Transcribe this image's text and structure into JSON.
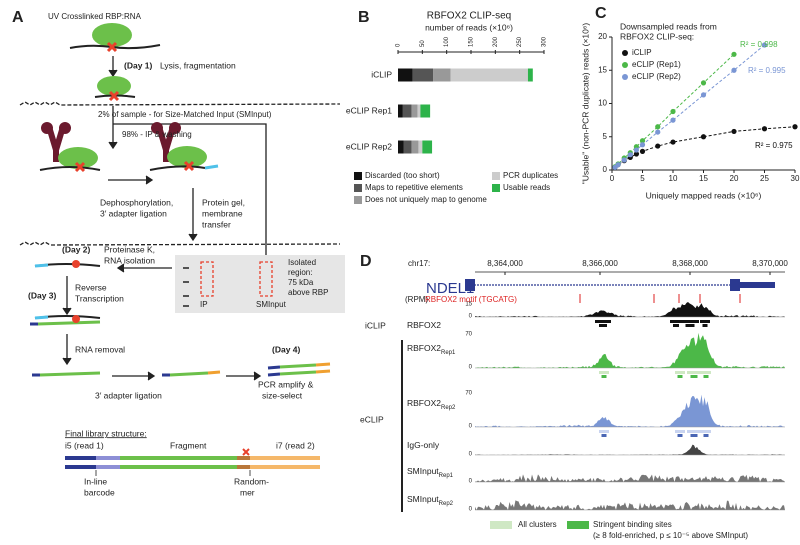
{
  "panel_a": {
    "label": "A",
    "top": "UV Crosslinked RBP:RNA",
    "day1": "(Day 1)",
    "day1_step": "Lysis, fragmentation",
    "split": "2% of sample - for Size-Matched Input (SMInput)",
    "ip": "98% - IP & washing",
    "dephos": [
      "Dephosphorylation,",
      "3′ adapter ligation"
    ],
    "gel": [
      "Protein gel,",
      "membrane",
      "transfer"
    ],
    "day2": "(Day 2)",
    "day2_step": [
      "Proteinase K,",
      "RNA isolation"
    ],
    "isolated": [
      "Isolated",
      "region:",
      "75 kDa",
      "above RBP"
    ],
    "gel_lanes": [
      "IP",
      "SMInput"
    ],
    "day3": "(Day 3)",
    "day3_step": [
      "Reverse",
      "Transcription"
    ],
    "removal": "RNA removal",
    "ligation": "3′ adapter ligation",
    "day4": "(Day 4)",
    "day4_step": [
      "PCR amplify &",
      "size-select"
    ],
    "library_title": "Final library structure:",
    "library_parts": [
      "i5 (read 1)",
      "Fragment",
      "i7 (read 2)"
    ],
    "inline": [
      "In-line",
      "barcode"
    ],
    "randommer": [
      "Random-",
      "mer"
    ]
  },
  "chart_data": [
    {
      "type": "bar",
      "panel_label": "B",
      "title": "RBFOX2 CLIP-seq",
      "subtitle": "number of reads (×10⁶)",
      "orientation": "horizontal",
      "stacked": true,
      "categories": [
        "iCLIP",
        "eCLIP Rep1",
        "eCLIP Rep2"
      ],
      "series": [
        {
          "name": "Discarded (too short)",
          "color": "#111111",
          "values": [
            30,
            10,
            12
          ]
        },
        {
          "name": "Maps to repetitive elements",
          "color": "#555555",
          "values": [
            42,
            18,
            16
          ]
        },
        {
          "name": "Does not uniquely map to genome",
          "color": "#999999",
          "values": [
            36,
            12,
            14
          ]
        },
        {
          "name": "PCR duplicates",
          "color": "#cccccc",
          "values": [
            159,
            6,
            8
          ]
        },
        {
          "name": "Usable reads",
          "color": "#2db34a",
          "values": [
            10,
            20,
            20
          ]
        }
      ],
      "xlim": [
        0,
        300
      ],
      "xticks": [
        0,
        50,
        100,
        150,
        200,
        250,
        300
      ]
    },
    {
      "type": "scatter",
      "panel_label": "C",
      "legend_title": [
        "Downsampled reads from",
        "RBFOX2 CLIP-seq:"
      ],
      "x_label": "Uniquely mapped reads (×10⁶)",
      "y_label": "\"Usable\" (non-PCR duplicate) reads (×10⁶)",
      "series": [
        {
          "name": "iCLIP",
          "color": "#111111",
          "x": [
            0.5,
            1,
            2,
            3,
            4,
            5,
            7.5,
            10,
            15,
            20,
            25,
            30
          ],
          "values": [
            0.4,
            0.8,
            1.4,
            1.9,
            2.4,
            2.8,
            3.6,
            4.2,
            5.0,
            5.8,
            6.2,
            6.5
          ]
        },
        {
          "name": "eCLIP (Rep1)",
          "color": "#4cb848",
          "x": [
            0.5,
            1,
            2,
            3,
            4,
            5,
            7.5,
            10,
            15,
            20
          ],
          "values": [
            0.5,
            0.9,
            1.8,
            2.6,
            3.5,
            4.4,
            6.5,
            8.8,
            13.1,
            17.4
          ]
        },
        {
          "name": "eCLIP (Rep2)",
          "color": "#7a96d4",
          "x": [
            0.5,
            1,
            2,
            3,
            4,
            5,
            7.5,
            10,
            15,
            20,
            25
          ],
          "values": [
            0.4,
            0.8,
            1.5,
            2.3,
            3.0,
            3.8,
            5.7,
            7.5,
            11.3,
            15.0,
            18.8
          ]
        }
      ],
      "annotations": [
        {
          "text": "R² = 0.998",
          "color": "#4cb848"
        },
        {
          "text": "R² = 0.995",
          "color": "#7a96d4"
        },
        {
          "text": "R² = 0.975",
          "color": "#111111"
        }
      ],
      "xlim": [
        0,
        30
      ],
      "xticks": [
        0,
        5,
        10,
        15,
        20,
        25,
        30
      ],
      "ylim": [
        0,
        20
      ],
      "yticks": [
        0,
        5,
        10,
        15,
        20
      ]
    }
  ],
  "panel_d": {
    "label": "D",
    "chrom": "chr17:",
    "coords": [
      "8,364,000",
      "8,366,000",
      "8,368,000",
      "8,370,000"
    ],
    "gene": "NDEL1",
    "units": "(RPM)",
    "motif": "RBFOX2 motif (TGCATG)",
    "groups": [
      "iCLIP",
      "eCLIP"
    ],
    "tracks": [
      {
        "name": "RBFOX2",
        "max": 15,
        "min": 0
      },
      {
        "name": "RBFOX2",
        "sub": "Rep1",
        "max": 70,
        "min": 0
      },
      {
        "name": "RBFOX2",
        "sub": "Rep2",
        "max": 70,
        "min": 0
      },
      {
        "name": "IgG-only",
        "min": 0
      },
      {
        "name": "SMInput",
        "sub": "Rep1",
        "min": 0
      },
      {
        "name": "SMInput",
        "sub": "Rep2",
        "min": 0
      }
    ],
    "legend": [
      "All clusters",
      "Stringent binding sites",
      "(≥ 8 fold-enriched, p ≤ 10⁻⁵ above SMInput)"
    ]
  }
}
